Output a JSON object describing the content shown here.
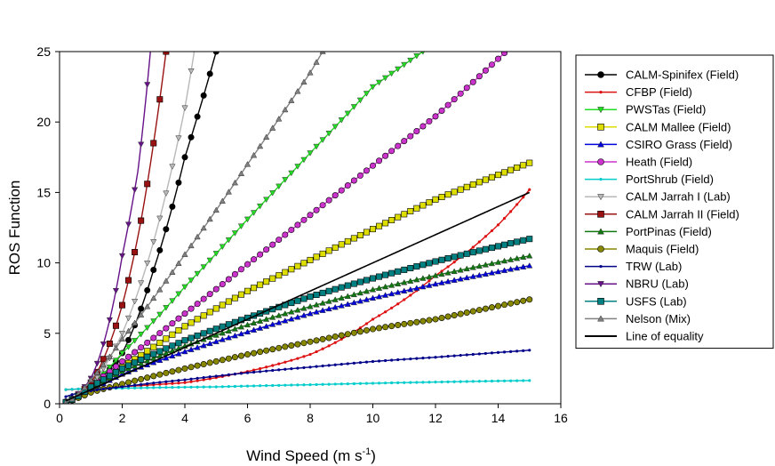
{
  "chart_data": {
    "type": "line",
    "xlabel": "Wind Speed (m s",
    "xlabel_sup": "-1",
    "xlabel_end": ")",
    "ylabel": "ROS Function",
    "xlim": [
      0,
      16
    ],
    "ylim": [
      0,
      25
    ],
    "xticks": [
      0,
      2,
      4,
      6,
      8,
      10,
      12,
      14,
      16
    ],
    "yticks": [
      0,
      5,
      10,
      15,
      20,
      25
    ],
    "grid": false,
    "legend_position": "right",
    "series": [
      {
        "name": "CALM-Spinifex (Field)",
        "color": "#000000",
        "marker": "circle",
        "model": "power",
        "points": [
          [
            0.2,
            0.15
          ],
          [
            1,
            1.1
          ],
          [
            2,
            3.6
          ],
          [
            3,
            9.5
          ],
          [
            4,
            17.5
          ],
          [
            5,
            25
          ]
        ]
      },
      {
        "name": "CFBP (Field)",
        "color": "#dd1111",
        "marker": "dot",
        "model": "exp",
        "points": [
          [
            0.2,
            1.0
          ],
          [
            4,
            1.5
          ],
          [
            8,
            3.5
          ],
          [
            10,
            6
          ],
          [
            12,
            9.1
          ],
          [
            14,
            12.7
          ],
          [
            15,
            15.2
          ]
        ]
      },
      {
        "name": "PWSTas (Field)",
        "color": "#22dd22",
        "marker": "triangle-down",
        "model": "power",
        "points": [
          [
            0.2,
            0.1
          ],
          [
            1,
            1.3
          ],
          [
            2,
            3.6
          ],
          [
            4,
            8.3
          ],
          [
            6,
            13.1
          ],
          [
            8,
            17.8
          ],
          [
            10,
            22.5
          ],
          [
            11.6,
            25
          ]
        ]
      },
      {
        "name": "CALM Mallee (Field)",
        "color": "#dddd00",
        "marker": "square",
        "model": "power",
        "points": [
          [
            0.2,
            0.1
          ],
          [
            1,
            1.1
          ],
          [
            2,
            2.6
          ],
          [
            4,
            5.5
          ],
          [
            6,
            8
          ],
          [
            8,
            10.2
          ],
          [
            10,
            12.4
          ],
          [
            12,
            14.5
          ],
          [
            15,
            17.1
          ]
        ]
      },
      {
        "name": "CSIRO Grass (Field)",
        "color": "#0000dd",
        "marker": "triangle-up",
        "model": "power",
        "points": [
          [
            0.2,
            0.1
          ],
          [
            1,
            1.0
          ],
          [
            2,
            2.1
          ],
          [
            4,
            3.7
          ],
          [
            6,
            5.1
          ],
          [
            8,
            6.4
          ],
          [
            10,
            7.5
          ],
          [
            12,
            8.5
          ],
          [
            15,
            9.8
          ]
        ]
      },
      {
        "name": "Heath (Field)",
        "color": "#cc33cc",
        "marker": "circle",
        "model": "power",
        "points": [
          [
            0.2,
            0.1
          ],
          [
            1,
            1.3
          ],
          [
            2,
            3.0
          ],
          [
            4,
            6.4
          ],
          [
            6,
            9.9
          ],
          [
            8,
            13.4
          ],
          [
            10,
            16.9
          ],
          [
            12,
            20.4
          ],
          [
            14.2,
            24.9
          ]
        ]
      },
      {
        "name": "PortShrub (Field)",
        "color": "#00cccc",
        "marker": "dot",
        "model": "power",
        "points": [
          [
            0.2,
            1.0
          ],
          [
            2,
            1.1
          ],
          [
            5,
            1.2
          ],
          [
            8,
            1.35
          ],
          [
            11,
            1.5
          ],
          [
            15,
            1.65
          ]
        ]
      },
      {
        "name": "CALM Jarrah I (Lab)",
        "color": "#b8b8b8",
        "marker": "triangle-down",
        "model": "power",
        "points": [
          [
            0.2,
            0.1
          ],
          [
            1,
            1.3
          ],
          [
            2,
            5
          ],
          [
            3,
            11.5
          ],
          [
            4,
            21
          ],
          [
            4.3,
            25
          ]
        ]
      },
      {
        "name": "CALM Jarrah II (Field)",
        "color": "#991111",
        "marker": "square",
        "model": "power",
        "points": [
          [
            0.2,
            0.1
          ],
          [
            1,
            1.5
          ],
          [
            2,
            7
          ],
          [
            2.6,
            13
          ],
          [
            3,
            18.5
          ],
          [
            3.4,
            25
          ]
        ]
      },
      {
        "name": "PortPinas (Field)",
        "color": "#117711",
        "marker": "triangle-up",
        "model": "power",
        "points": [
          [
            0.2,
            0.1
          ],
          [
            1,
            1.1
          ],
          [
            2,
            2.3
          ],
          [
            4,
            4.1
          ],
          [
            6,
            5.6
          ],
          [
            8,
            6.9
          ],
          [
            10,
            8.1
          ],
          [
            12,
            9.1
          ],
          [
            15,
            10.5
          ]
        ]
      },
      {
        "name": "Maquis (Field)",
        "color": "#888800",
        "marker": "circle",
        "model": "power",
        "points": [
          [
            0.2,
            0.1
          ],
          [
            1,
            0.8
          ],
          [
            2,
            1.4
          ],
          [
            4,
            2.5
          ],
          [
            6,
            3.5
          ],
          [
            8,
            4.4
          ],
          [
            10,
            5.3
          ],
          [
            12,
            6.0
          ],
          [
            15,
            7.4
          ]
        ]
      },
      {
        "name": "TRW (Lab)",
        "color": "#000088",
        "marker": "dot",
        "model": "power",
        "points": [
          [
            0.2,
            0.5
          ],
          [
            2,
            1.2
          ],
          [
            4,
            1.7
          ],
          [
            6,
            2.2
          ],
          [
            8,
            2.6
          ],
          [
            10,
            3.0
          ],
          [
            12,
            3.3
          ],
          [
            15,
            3.8
          ]
        ]
      },
      {
        "name": "NBRU (Lab)",
        "color": "#661188",
        "marker": "triangle-down",
        "model": "power",
        "points": [
          [
            0.2,
            0.1
          ],
          [
            1,
            1.8
          ],
          [
            2,
            10.5
          ],
          [
            2.5,
            16.5
          ],
          [
            2.9,
            25
          ]
        ]
      },
      {
        "name": "USFS (Lab)",
        "color": "#008080",
        "marker": "square",
        "model": "power",
        "points": [
          [
            0.2,
            0.1
          ],
          [
            1,
            1.2
          ],
          [
            2,
            2.5
          ],
          [
            4,
            4.5
          ],
          [
            6,
            6.1
          ],
          [
            8,
            7.6
          ],
          [
            10,
            8.9
          ],
          [
            12,
            10.1
          ],
          [
            15,
            11.7
          ]
        ]
      },
      {
        "name": "Nelson (Mix)",
        "color": "#808080",
        "marker": "triangle-up",
        "model": "power",
        "points": [
          [
            0.2,
            0.1
          ],
          [
            1,
            1.7
          ],
          [
            2,
            4.6
          ],
          [
            4,
            10.6
          ],
          [
            6,
            17
          ],
          [
            8,
            23.5
          ],
          [
            8.4,
            25
          ]
        ]
      },
      {
        "name": "Line of equality",
        "color": "#000000",
        "marker": "none",
        "model": "line",
        "points": [
          [
            0.2,
            0.2
          ],
          [
            15,
            15
          ]
        ]
      }
    ]
  }
}
